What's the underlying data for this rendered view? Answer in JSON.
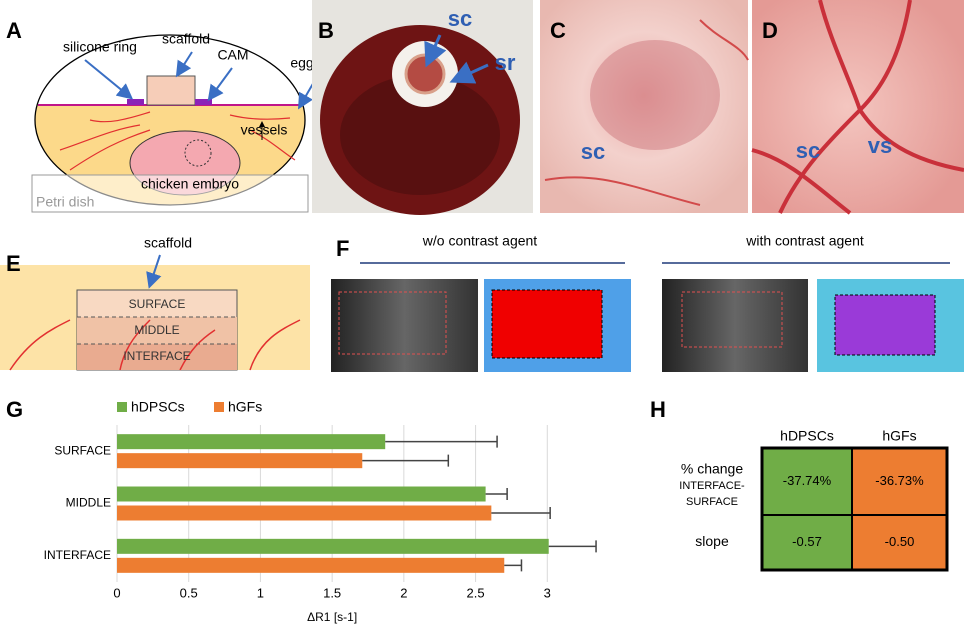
{
  "panel_letters": [
    "A",
    "B",
    "C",
    "D",
    "E",
    "F",
    "G",
    "H"
  ],
  "diagram_a": {
    "silicone_ring": "silicone ring",
    "scaffold": "scaffold",
    "cam": "CAM",
    "egg": "egg",
    "vessels": "vessels",
    "embryo": "chicken embryo",
    "petri_dish": "Petri dish"
  },
  "photo_b": {
    "sc": "sc",
    "sr": "sr"
  },
  "photo_c": {
    "sc": "sc"
  },
  "photo_d": {
    "sc": "sc",
    "vs": "vs"
  },
  "diagram_e": {
    "scaffold": "scaffold",
    "layers": [
      "SURFACE",
      "MIDDLE",
      "INTERFACE"
    ]
  },
  "panel_f": {
    "titles": [
      "w/o contrast agent",
      "with contrast agent"
    ]
  },
  "chart_data": {
    "type": "bar",
    "orientation": "horizontal",
    "x_label": "ΔR1 [s-1]",
    "categories": [
      "SURFACE",
      "MIDDLE",
      "INTERFACE"
    ],
    "series": [
      {
        "name": "hDPSCs",
        "color": "#70ad47",
        "values": [
          1.87,
          2.57,
          3.01
        ],
        "errors": [
          0.78,
          0.15,
          0.33
        ]
      },
      {
        "name": "hGFs",
        "color": "#ed7d31",
        "values": [
          1.71,
          2.61,
          2.7
        ],
        "errors": [
          0.6,
          0.41,
          0.12
        ]
      }
    ],
    "xlim": [
      0,
      3.5
    ],
    "xticks": [
      0,
      0.5,
      1,
      1.5,
      2,
      2.5,
      3
    ],
    "grid": true
  },
  "table_h": {
    "columns": [
      "hDPSCs",
      "hGFs"
    ],
    "rows": [
      {
        "label_lines": [
          "% change",
          "INTERFACE-",
          "SURFACE"
        ],
        "cells": [
          "-37.74%",
          "-36.73%"
        ]
      },
      {
        "label_lines": [
          "slope"
        ],
        "cells": [
          "-0.57",
          "-0.50"
        ]
      }
    ]
  }
}
